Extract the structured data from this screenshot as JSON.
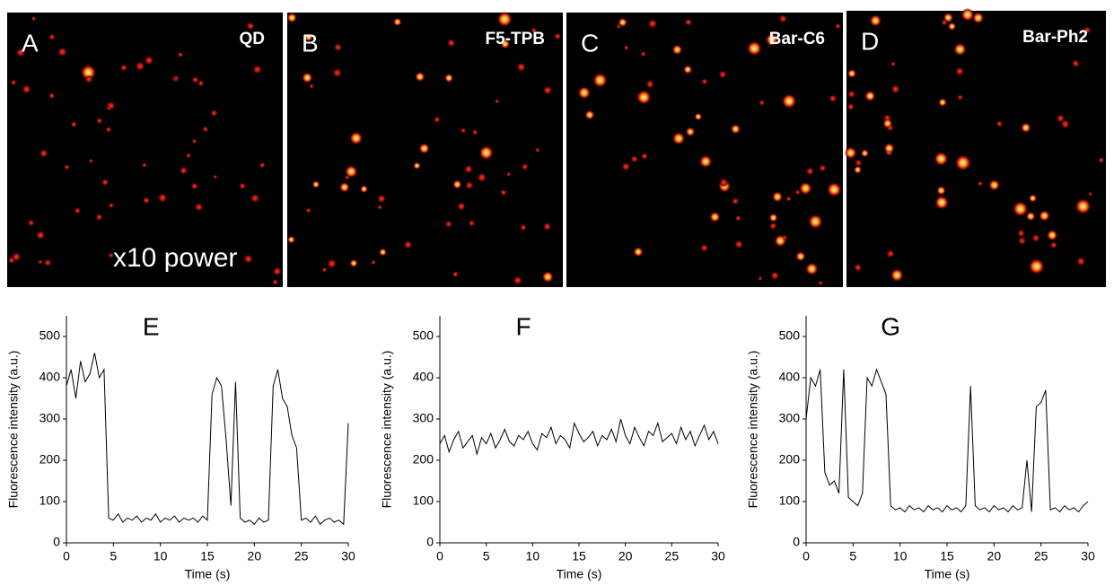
{
  "images": [
    {
      "label": "A",
      "name": "QD",
      "annotation": "x10 power"
    },
    {
      "label": "B",
      "name": "F5-TPB"
    },
    {
      "label": "C",
      "name": "Bar-C6"
    },
    {
      "label": "D",
      "name": "Bar-Ph2"
    }
  ],
  "chart_data": [
    {
      "type": "line",
      "title": "E",
      "xlabel": "Time (s)",
      "ylabel": "Fluorescence intensity (a.u.)",
      "color": "#000000",
      "x": [
        0,
        0.5,
        1,
        1.5,
        2,
        2.5,
        3,
        3.5,
        4,
        4.5,
        5,
        5.5,
        6,
        6.5,
        7,
        7.5,
        8,
        8.5,
        9,
        9.5,
        10,
        10.5,
        11,
        11.5,
        12,
        12.5,
        13,
        13.5,
        14,
        14.5,
        15,
        15.5,
        16,
        16.5,
        17,
        17.5,
        18,
        18.5,
        19,
        19.5,
        20,
        20.5,
        21,
        21.5,
        22,
        22.5,
        23,
        23.5,
        24,
        24.5,
        25,
        25.5,
        26,
        26.5,
        27,
        27.5,
        28,
        28.5,
        29,
        29.5,
        30
      ],
      "values": [
        380,
        420,
        350,
        440,
        390,
        410,
        460,
        400,
        420,
        60,
        55,
        70,
        50,
        60,
        55,
        65,
        50,
        60,
        55,
        70,
        50,
        60,
        55,
        65,
        50,
        60,
        55,
        60,
        50,
        65,
        55,
        360,
        400,
        380,
        250,
        90,
        390,
        60,
        50,
        55,
        45,
        60,
        50,
        55,
        380,
        420,
        350,
        330,
        260,
        230,
        55,
        60,
        50,
        65,
        45,
        55,
        60,
        50,
        55,
        45,
        290
      ],
      "xlim": [
        0,
        30
      ],
      "ylim": [
        0,
        550
      ],
      "xticks": [
        0,
        5,
        10,
        15,
        20,
        25,
        30
      ],
      "yticks": [
        0,
        100,
        200,
        300,
        400,
        500
      ]
    },
    {
      "type": "line",
      "title": "F",
      "xlabel": "Time (s)",
      "ylabel": "Fluorescence intensity (a.u.)",
      "color": "#000000",
      "x": [
        0,
        0.5,
        1,
        1.5,
        2,
        2.5,
        3,
        3.5,
        4,
        4.5,
        5,
        5.5,
        6,
        6.5,
        7,
        7.5,
        8,
        8.5,
        9,
        9.5,
        10,
        10.5,
        11,
        11.5,
        12,
        12.5,
        13,
        13.5,
        14,
        14.5,
        15,
        15.5,
        16,
        16.5,
        17,
        17.5,
        18,
        18.5,
        19,
        19.5,
        20,
        20.5,
        21,
        21.5,
        22,
        22.5,
        23,
        23.5,
        24,
        24.5,
        25,
        25.5,
        26,
        26.5,
        27,
        27.5,
        28,
        28.5,
        29,
        29.5,
        30
      ],
      "values": [
        240,
        260,
        220,
        250,
        270,
        230,
        245,
        260,
        215,
        255,
        240,
        265,
        230,
        250,
        275,
        245,
        235,
        260,
        250,
        270,
        240,
        225,
        265,
        255,
        280,
        240,
        260,
        250,
        230,
        290,
        265,
        245,
        255,
        270,
        235,
        260,
        250,
        275,
        245,
        300,
        260,
        240,
        280,
        255,
        235,
        270,
        260,
        290,
        245,
        255,
        265,
        240,
        280,
        250,
        270,
        235,
        260,
        285,
        250,
        270,
        240
      ],
      "xlim": [
        0,
        30
      ],
      "ylim": [
        0,
        550
      ],
      "xticks": [
        0,
        5,
        10,
        15,
        20,
        25,
        30
      ],
      "yticks": [
        0,
        100,
        200,
        300,
        400,
        500
      ]
    },
    {
      "type": "line",
      "title": "G",
      "xlabel": "Time (s)",
      "ylabel": "Fluorescence intensity (a.u.)",
      "color": "#000000",
      "x": [
        0,
        0.5,
        1,
        1.5,
        2,
        2.5,
        3,
        3.5,
        4,
        4.5,
        5,
        5.5,
        6,
        6.5,
        7,
        7.5,
        8,
        8.5,
        9,
        9.5,
        10,
        10.5,
        11,
        11.5,
        12,
        12.5,
        13,
        13.5,
        14,
        14.5,
        15,
        15.5,
        16,
        16.5,
        17,
        17.5,
        18,
        18.5,
        19,
        19.5,
        20,
        20.5,
        21,
        21.5,
        22,
        22.5,
        23,
        23.5,
        24,
        24.5,
        25,
        25.5,
        26,
        26.5,
        27,
        27.5,
        28,
        28.5,
        29,
        29.5,
        30
      ],
      "values": [
        300,
        400,
        380,
        420,
        170,
        140,
        150,
        120,
        420,
        110,
        100,
        90,
        120,
        400,
        380,
        420,
        390,
        360,
        90,
        80,
        85,
        75,
        90,
        80,
        85,
        75,
        90,
        80,
        85,
        75,
        90,
        80,
        85,
        75,
        90,
        380,
        90,
        80,
        85,
        75,
        90,
        80,
        85,
        75,
        90,
        80,
        85,
        200,
        75,
        330,
        340,
        370,
        80,
        85,
        75,
        90,
        80,
        85,
        75,
        90,
        100
      ],
      "xlim": [
        0,
        30
      ],
      "ylim": [
        0,
        550
      ],
      "xticks": [
        0,
        5,
        10,
        15,
        20,
        25,
        30
      ],
      "yticks": [
        0,
        100,
        200,
        300,
        400,
        500
      ]
    }
  ]
}
